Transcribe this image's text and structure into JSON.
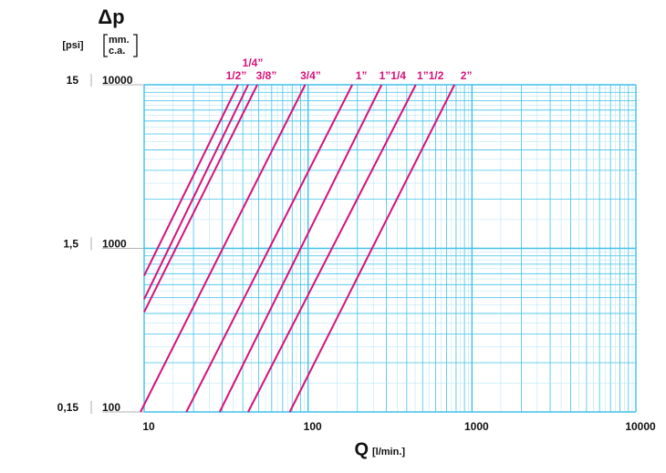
{
  "chart_data": {
    "type": "line",
    "title": "Δp",
    "y_unit": "[psi]",
    "y2_unit_top": "mm.",
    "y2_unit_bottom": "c.a.",
    "x_label": "Q",
    "x_unit": "[l/min.]",
    "log_x": true,
    "log_y": true,
    "grid": true,
    "grid_color": "#3fc1e8",
    "minor_grid_color": "#aee3f4",
    "xlim": [
      10,
      10000
    ],
    "xticks": [
      10,
      100,
      1000,
      10000
    ],
    "ylim": [
      100,
      10000
    ],
    "yticks": [
      100,
      1000,
      10000
    ],
    "y2lim": [
      0.15,
      15
    ],
    "y2ticks": [
      {
        "value": 0.15,
        "label": "0,15"
      },
      {
        "value": 1.5,
        "label": "1,5"
      },
      15
    ],
    "series": [
      {
        "name": "1/2”",
        "color": "#d6127a",
        "x": [
          10,
          37.4
        ],
        "values": [
          681,
          10000
        ]
      },
      {
        "name": "1/4”",
        "color": "#d6127a",
        "x": [
          10,
          43.1
        ],
        "values": [
          489,
          10000
        ]
      },
      {
        "name": "3/8”",
        "color": "#d6127a",
        "x": [
          10,
          49
        ],
        "values": [
          408,
          10000
        ]
      },
      {
        "name": "3/4”",
        "color": "#d6127a",
        "x": [
          9.5,
          96
        ],
        "values": [
          100,
          10000
        ]
      },
      {
        "name": "1”",
        "color": "#d6127a",
        "x": [
          18.1,
          186
        ],
        "values": [
          100,
          10000
        ]
      },
      {
        "name": "1”1/4",
        "color": "#d6127a",
        "x": [
          28.9,
          281
        ],
        "values": [
          100,
          10000
        ]
      },
      {
        "name": "1”1/2",
        "color": "#d6127a",
        "x": [
          43.1,
          454
        ],
        "values": [
          100,
          10000
        ]
      },
      {
        "name": "2”",
        "color": "#d6127a",
        "x": [
          77.3,
          782
        ],
        "values": [
          100,
          10000
        ]
      }
    ]
  }
}
